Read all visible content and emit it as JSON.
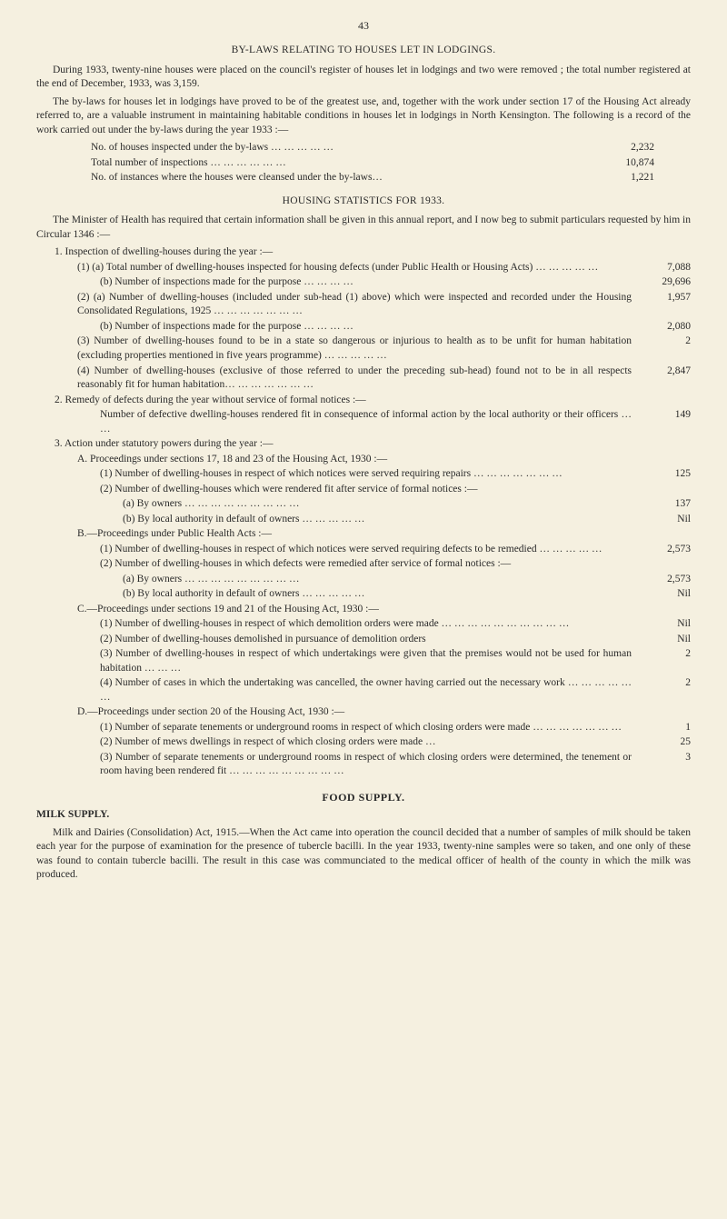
{
  "page_number": "43",
  "bylaws": {
    "title": "BY-LAWS RELATING TO HOUSES LET IN LODGINGS.",
    "p1": "During 1933, twenty-nine houses were placed on the council's register of houses let in lodgings and two were removed ; the total number registered at the end of December, 1933, was 3,159.",
    "p2": "The by-laws for houses let in lodgings have proved to be of the greatest use, and, together with the work under section 17 of the Housing Act already referred to, are a valuable instrument in maintaining habitable conditions in houses let in lodgings in North Kensington. The following is a record of the work carried out under the by-laws during the year 1933 :—",
    "stats": [
      {
        "label": "No. of houses inspected under the by-laws … … … … …",
        "value": "2,232"
      },
      {
        "label": "Total number of inspections … … … … … …",
        "value": "10,874"
      },
      {
        "label": "No. of instances where the houses were cleansed under the by-laws…",
        "value": "1,221"
      }
    ]
  },
  "housing": {
    "title": "HOUSING STATISTICS FOR 1933.",
    "intro": "The Minister of Health has required that certain information shall be given in this annual report, and I now beg to submit particulars requested by him in Circular 1346 :—",
    "items": [
      {
        "ind": 1,
        "text": "1. Inspection of dwelling-houses during the year :—",
        "value": ""
      },
      {
        "ind": 2,
        "text": "(1) (a) Total number of dwelling-houses inspected for housing defects (under Public Health or Housing Acts) … … … … …",
        "value": "7,088"
      },
      {
        "ind": 3,
        "text": "(b) Number of inspections made for the purpose … … … …",
        "value": "29,696"
      },
      {
        "ind": 2,
        "text": "(2) (a) Number of dwelling-houses (included under sub-head (1) above) which were inspected and recorded under the Housing Consolidated Regulations, 1925 … … … … … … …",
        "value": "1,957"
      },
      {
        "ind": 3,
        "text": "(b) Number of inspections made for the purpose … … … …",
        "value": "2,080"
      },
      {
        "ind": 2,
        "text": "(3) Number of dwelling-houses found to be in a state so dangerous or injurious to health as to be unfit for human habitation (excluding properties mentioned in five years programme) … … … … …",
        "value": "2"
      },
      {
        "ind": 2,
        "text": "(4) Number of dwelling-houses (exclusive of those referred to under the preceding sub-head) found not to be in all respects reasonably fit for human habitation… … … … … … …",
        "value": "2,847"
      },
      {
        "ind": 1,
        "text": "2. Remedy of defects during the year without service of formal notices :—",
        "value": ""
      },
      {
        "ind": 3,
        "text": "Number of defective dwelling-houses rendered fit in consequence of informal action by the local authority or their officers … …",
        "value": "149"
      },
      {
        "ind": 1,
        "text": "3. Action under statutory powers during the year :—",
        "value": ""
      },
      {
        "ind": 2,
        "text": "A. Proceedings under sections 17, 18 and 23 of the Housing Act, 1930 :—",
        "value": ""
      },
      {
        "ind": 3,
        "text": "(1) Number of dwelling-houses in respect of which notices were served requiring repairs … … … … … … …",
        "value": "125"
      },
      {
        "ind": 3,
        "text": "(2) Number of dwelling-houses which were rendered fit after service of formal notices :—",
        "value": ""
      },
      {
        "ind": 4,
        "text": "(a) By owners … … … … … … … … …",
        "value": "137"
      },
      {
        "ind": 4,
        "text": "(b) By local authority in default of owners … … … … …",
        "value": "Nil"
      },
      {
        "ind": 2,
        "text": "B.—Proceedings under Public Health Acts :—",
        "value": ""
      },
      {
        "ind": 3,
        "text": "(1) Number of dwelling-houses in respect of which notices were served requiring defects to be remedied … … … … …",
        "value": "2,573"
      },
      {
        "ind": 3,
        "text": "(2) Number of dwelling-houses in which defects were remedied after service of formal notices :—",
        "value": ""
      },
      {
        "ind": 4,
        "text": "(a) By owners … … … … … … … … …",
        "value": "2,573"
      },
      {
        "ind": 4,
        "text": "(b) By local authority in default of owners … … … … …",
        "value": "Nil"
      },
      {
        "ind": 2,
        "text": "C.—Proceedings under sections 19 and 21 of the Housing Act, 1930 :—",
        "value": ""
      },
      {
        "ind": 3,
        "text": "(1) Number of dwelling-houses in respect of which demolition orders were made … … … … … … … … … …",
        "value": "Nil"
      },
      {
        "ind": 3,
        "text": "(2) Number of dwelling-houses demolished in pursuance of demolition orders",
        "value": "Nil"
      },
      {
        "ind": 3,
        "text": "(3) Number of dwelling-houses in respect of which undertakings were given that the premises would not be used for human habitation … … …",
        "value": "2"
      },
      {
        "ind": 3,
        "text": "(4) Number of cases in which the undertaking was cancelled, the owner having carried out the necessary work … … … … … …",
        "value": "2"
      },
      {
        "ind": 2,
        "text": "D.—Proceedings under section 20 of the Housing Act, 1930 :—",
        "value": ""
      },
      {
        "ind": 3,
        "text": "(1) Number of separate tenements or underground rooms in respect of which closing orders were made … … … … … … …",
        "value": "1"
      },
      {
        "ind": 3,
        "text": "(2) Number of mews dwellings in respect of which closing orders were made …",
        "value": "25"
      },
      {
        "ind": 3,
        "text": "(3) Number of separate tenements or underground rooms in respect of which closing orders were determined, the tenement or room having been rendered fit … … … … … … … … …",
        "value": "3"
      }
    ]
  },
  "food": {
    "title": "FOOD SUPPLY.",
    "milk_supply": "MILK SUPPLY.",
    "milk_para": "Milk and Dairies (Consolidation) Act, 1915.—When the Act came into operation the council decided that a number of samples of milk should be taken each year for the purpose of examination for the presence of tubercle bacilli. In the year 1933, twenty-nine samples were so taken, and one only of these was found to contain tubercle bacilli. The result in this case was communciated to the medical officer of health of the county in which the milk was produced."
  }
}
